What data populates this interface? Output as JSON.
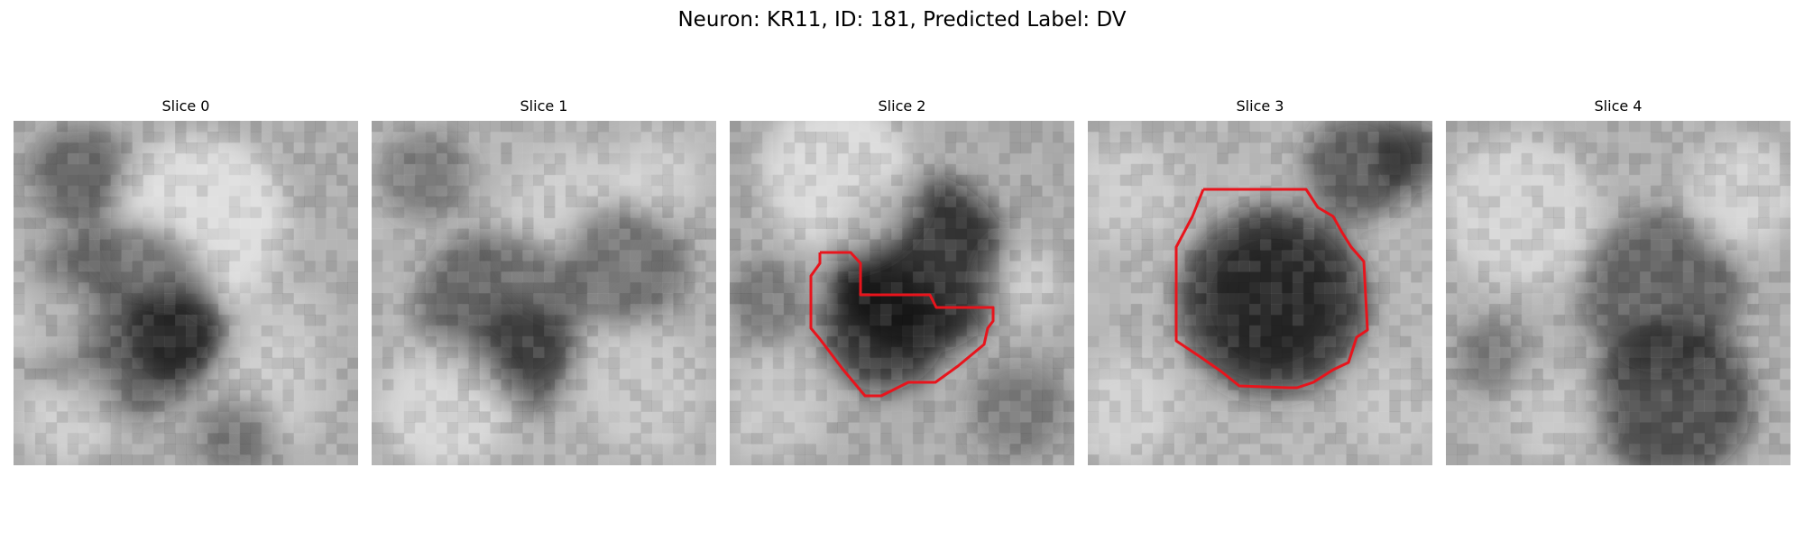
{
  "figure": {
    "title": "Neuron: KR11, ID: 181, Predicted Label: DV"
  },
  "panels": [
    {
      "title": "Slice 0",
      "has_outline": false
    },
    {
      "title": "Slice 1",
      "has_outline": false
    },
    {
      "title": "Slice 2",
      "has_outline": true
    },
    {
      "title": "Slice 3",
      "has_outline": true
    },
    {
      "title": "Slice 4",
      "has_outline": false
    }
  ],
  "colors": {
    "background": "#ffffff",
    "image_colormap": "gray",
    "outline": "#e8141c"
  }
}
